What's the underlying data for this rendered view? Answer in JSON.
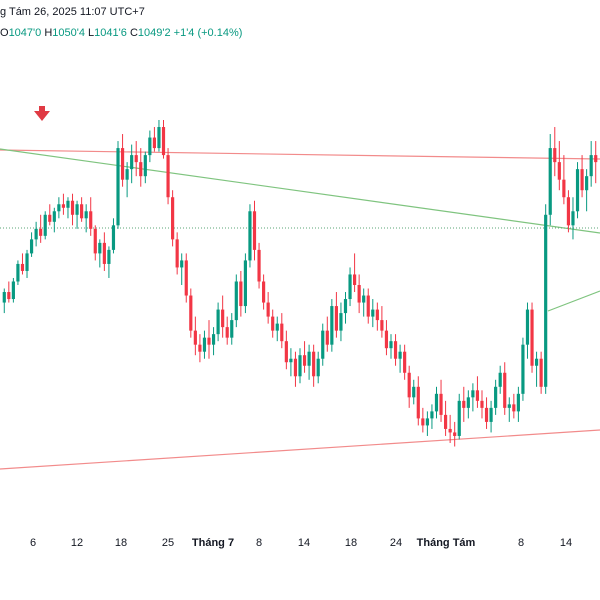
{
  "header": {
    "timestamp": "g Tám 26, 2025 11:07 UTC+7"
  },
  "ohlc": {
    "open_label": "O",
    "open": "1047'0",
    "high_label": "H",
    "high": "1050'4",
    "low_label": "L",
    "low": "1041'6",
    "close_label": "C",
    "close": "1049'2",
    "change": "+1'4 (+0.14%)"
  },
  "colors": {
    "up": "#089981",
    "down": "#f23645",
    "resistance_line": "#f28b8b",
    "trend_line": "#7fc47f",
    "marker": "#e03a44"
  },
  "icons": {
    "marker": "down-arrow-icon"
  },
  "chart_data": {
    "type": "candlestick",
    "x_tick_labels": [
      "6",
      "12",
      "18",
      "25",
      "Tháng 7",
      "8",
      "14",
      "18",
      "24",
      "Tháng Tám",
      "8",
      "14"
    ],
    "x_tick_bold": [
      false,
      false,
      false,
      false,
      true,
      false,
      false,
      false,
      false,
      true,
      false,
      false
    ],
    "y_range": [
      0,
      100
    ],
    "candles": [
      [
        30,
        34,
        27,
        33
      ],
      [
        33,
        36,
        30,
        31
      ],
      [
        31,
        37,
        30,
        36
      ],
      [
        36,
        42,
        35,
        41
      ],
      [
        41,
        44,
        38,
        39
      ],
      [
        39,
        45,
        37,
        44
      ],
      [
        44,
        50,
        43,
        48
      ],
      [
        48,
        53,
        46,
        51
      ],
      [
        51,
        55,
        47,
        49
      ],
      [
        49,
        56,
        48,
        55
      ],
      [
        55,
        58,
        52,
        53
      ],
      [
        53,
        57,
        50,
        56
      ],
      [
        56,
        60,
        54,
        58
      ],
      [
        58,
        61,
        55,
        57
      ],
      [
        57,
        60,
        54,
        59
      ],
      [
        59,
        61,
        52,
        55
      ],
      [
        55,
        59,
        51,
        58
      ],
      [
        58,
        60,
        53,
        54
      ],
      [
        54,
        58,
        50,
        56
      ],
      [
        56,
        60,
        49,
        51
      ],
      [
        51,
        52,
        42,
        44
      ],
      [
        44,
        48,
        40,
        47
      ],
      [
        47,
        50,
        39,
        41
      ],
      [
        41,
        46,
        37,
        45
      ],
      [
        45,
        54,
        44,
        52
      ],
      [
        52,
        76,
        51,
        74
      ],
      [
        74,
        78,
        63,
        65
      ],
      [
        65,
        70,
        60,
        68
      ],
      [
        68,
        75,
        64,
        72
      ],
      [
        72,
        76,
        66,
        70
      ],
      [
        70,
        74,
        63,
        66
      ],
      [
        66,
        73,
        64,
        72
      ],
      [
        72,
        79,
        70,
        77
      ],
      [
        77,
        80,
        73,
        74
      ],
      [
        74,
        82,
        73,
        80
      ],
      [
        80,
        82,
        71,
        72
      ],
      [
        72,
        74,
        58,
        60
      ],
      [
        60,
        62,
        46,
        48
      ],
      [
        48,
        50,
        38,
        40
      ],
      [
        40,
        44,
        35,
        42
      ],
      [
        42,
        44,
        30,
        32
      ],
      [
        32,
        34,
        20,
        22
      ],
      [
        22,
        26,
        15,
        18
      ],
      [
        18,
        21,
        13,
        16
      ],
      [
        16,
        22,
        14,
        20
      ],
      [
        20,
        25,
        14,
        18
      ],
      [
        18,
        23,
        15,
        21
      ],
      [
        21,
        30,
        19,
        28
      ],
      [
        28,
        32,
        20,
        23
      ],
      [
        23,
        26,
        18,
        20
      ],
      [
        20,
        27,
        18,
        25
      ],
      [
        25,
        38,
        23,
        36
      ],
      [
        36,
        39,
        26,
        29
      ],
      [
        29,
        44,
        27,
        42
      ],
      [
        42,
        58,
        40,
        56
      ],
      [
        56,
        59,
        42,
        45
      ],
      [
        45,
        47,
        34,
        36
      ],
      [
        36,
        38,
        28,
        30
      ],
      [
        30,
        33,
        24,
        26
      ],
      [
        26,
        28,
        20,
        22
      ],
      [
        22,
        26,
        19,
        24
      ],
      [
        24,
        27,
        17,
        19
      ],
      [
        19,
        22,
        11,
        13
      ],
      [
        13,
        17,
        9,
        14
      ],
      [
        14,
        16,
        6,
        9
      ],
      [
        9,
        17,
        7,
        15
      ],
      [
        15,
        19,
        10,
        12
      ],
      [
        12,
        18,
        8,
        16
      ],
      [
        16,
        18,
        6,
        9
      ],
      [
        9,
        16,
        7,
        14
      ],
      [
        14,
        24,
        12,
        22
      ],
      [
        22,
        26,
        16,
        18
      ],
      [
        18,
        31,
        16,
        29
      ],
      [
        29,
        33,
        20,
        22
      ],
      [
        22,
        30,
        19,
        27
      ],
      [
        27,
        33,
        24,
        31
      ],
      [
        31,
        40,
        29,
        38
      ],
      [
        38,
        44,
        33,
        35
      ],
      [
        35,
        38,
        27,
        30
      ],
      [
        30,
        34,
        26,
        32
      ],
      [
        32,
        34,
        24,
        26
      ],
      [
        26,
        31,
        23,
        28
      ],
      [
        28,
        30,
        22,
        25
      ],
      [
        25,
        29,
        20,
        22
      ],
      [
        22,
        25,
        15,
        17
      ],
      [
        17,
        21,
        14,
        19
      ],
      [
        19,
        21,
        12,
        14
      ],
      [
        14,
        18,
        10,
        16
      ],
      [
        16,
        18,
        8,
        10
      ],
      [
        10,
        12,
        0,
        3
      ],
      [
        3,
        8,
        1,
        6
      ],
      [
        6,
        9,
        -5,
        -3
      ],
      [
        -3,
        0,
        -7,
        -5
      ],
      [
        -5,
        -1,
        -8,
        -3
      ],
      [
        -3,
        1,
        -6,
        -1
      ],
      [
        -1,
        6,
        -3,
        4
      ],
      [
        4,
        8,
        -4,
        -2
      ],
      [
        -2,
        2,
        -8,
        -6
      ],
      [
        -6,
        -2,
        -10,
        -7
      ],
      [
        -7,
        -4,
        -11,
        -8
      ],
      [
        -8,
        4,
        -9,
        2
      ],
      [
        2,
        6,
        -4,
        0
      ],
      [
        0,
        5,
        -3,
        3
      ],
      [
        3,
        7,
        -1,
        5
      ],
      [
        5,
        9,
        0,
        2
      ],
      [
        2,
        5,
        -3,
        0
      ],
      [
        0,
        3,
        -6,
        -4
      ],
      [
        -4,
        2,
        -7,
        0
      ],
      [
        0,
        8,
        -2,
        6
      ],
      [
        6,
        12,
        4,
        10
      ],
      [
        10,
        13,
        -2,
        0
      ],
      [
        0,
        3,
        -4,
        1
      ],
      [
        1,
        4,
        -3,
        -1
      ],
      [
        -1,
        6,
        -4,
        4
      ],
      [
        4,
        20,
        2,
        18
      ],
      [
        18,
        30,
        14,
        28
      ],
      [
        28,
        30,
        10,
        12
      ],
      [
        12,
        16,
        6,
        14
      ],
      [
        14,
        16,
        4,
        6
      ],
      [
        6,
        58,
        4,
        55
      ],
      [
        55,
        78,
        52,
        74
      ],
      [
        74,
        80,
        66,
        70
      ],
      [
        70,
        76,
        62,
        65
      ],
      [
        65,
        72,
        58,
        60
      ],
      [
        60,
        62,
        50,
        52
      ],
      [
        52,
        60,
        48,
        56
      ],
      [
        56,
        70,
        54,
        68
      ],
      [
        68,
        72,
        60,
        62
      ],
      [
        62,
        68,
        56,
        66
      ],
      [
        66,
        76,
        63,
        72
      ],
      [
        72,
        76,
        64,
        70
      ]
    ]
  }
}
